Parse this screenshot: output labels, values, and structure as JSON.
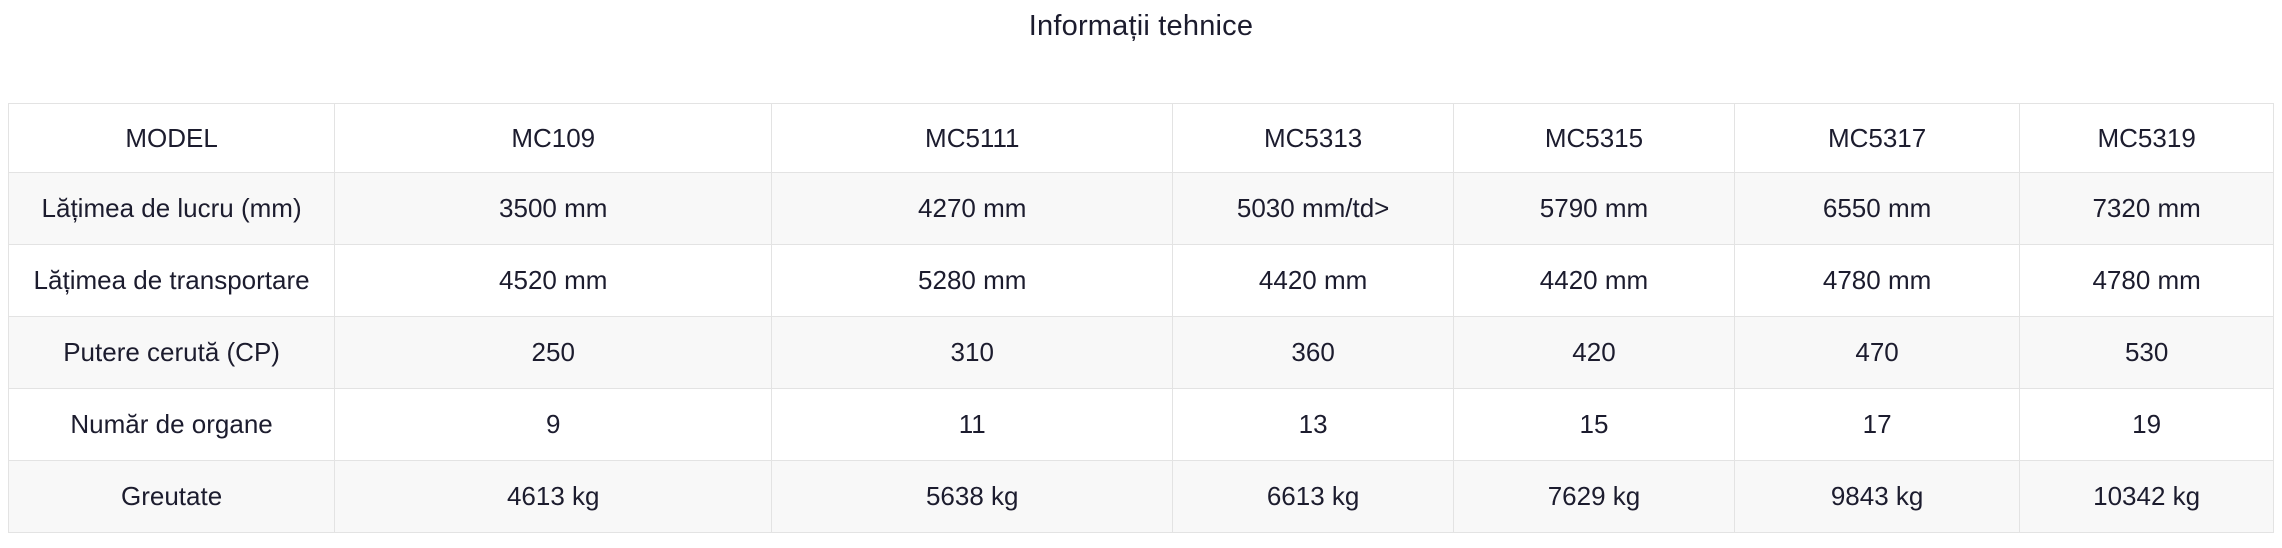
{
  "title": "Informații tehnice",
  "colors": {
    "text": "#1c1c2e",
    "stripe_row_bg": "#f8f8f8",
    "border": "#e3e3e3",
    "page_bg": "#ffffff"
  },
  "chart_data": {
    "type": "table",
    "title": "Informații tehnice",
    "columns": [
      "MODEL",
      "MC109",
      "MC5111",
      "MC5313",
      "MC5315",
      "MC5317",
      "MC5319"
    ],
    "rows": [
      {
        "label": "Lățimea de lucru (mm)",
        "values": [
          "3500 mm",
          "4270 mm",
          "5030 mm/td>",
          "5790 mm",
          "6550 mm",
          "7320 mm"
        ]
      },
      {
        "label": "Lățimea de transportare",
        "values": [
          "4520 mm",
          "5280 mm",
          "4420 mm",
          "4420 mm",
          "4780 mm",
          "4780 mm"
        ]
      },
      {
        "label": "Putere cerută (CP)",
        "values": [
          "250",
          "310",
          "360",
          "420",
          "470",
          "530"
        ]
      },
      {
        "label": "Număr de organe",
        "values": [
          "9",
          "11",
          "13",
          "15",
          "17",
          "19"
        ]
      },
      {
        "label": "Greutate",
        "values": [
          "4613 kg",
          "5638 kg",
          "6613 kg",
          "7629 kg",
          "9843 kg",
          "10342 kg"
        ]
      }
    ]
  }
}
